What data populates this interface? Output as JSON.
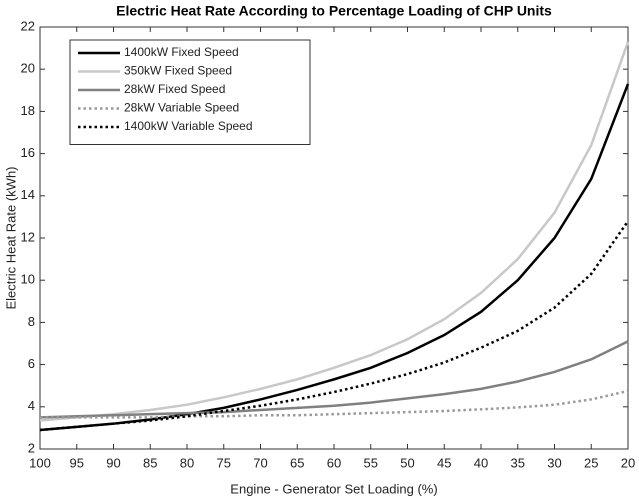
{
  "chart_data": {
    "type": "line",
    "title": "Electric Heat Rate According to Percentage Loading of CHP Units",
    "x_label": "Engine - Generator Set Loading (%)",
    "y_label": "Electric Heat Rate (kWh)",
    "x": [
      100,
      95,
      90,
      85,
      80,
      75,
      70,
      65,
      60,
      55,
      50,
      45,
      40,
      35,
      30,
      25,
      20
    ],
    "series": [
      {
        "name": "1400kW Fixed Speed",
        "color": "#000000",
        "style": "solid",
        "values": [
          2.9,
          3.05,
          3.2,
          3.4,
          3.65,
          3.95,
          4.35,
          4.8,
          5.3,
          5.85,
          6.55,
          7.4,
          8.5,
          10.0,
          12.0,
          14.8,
          19.3
        ]
      },
      {
        "name": "350kW Fixed Speed",
        "color": "#c8c8c8",
        "style": "solid",
        "values": [
          3.35,
          3.5,
          3.65,
          3.85,
          4.1,
          4.45,
          4.85,
          5.3,
          5.85,
          6.45,
          7.2,
          8.15,
          9.4,
          11.0,
          13.2,
          16.4,
          21.3
        ]
      },
      {
        "name": "28kW Fixed Speed",
        "color": "#808080",
        "style": "solid",
        "values": [
          3.5,
          3.55,
          3.6,
          3.65,
          3.7,
          3.75,
          3.85,
          3.95,
          4.05,
          4.2,
          4.4,
          4.6,
          4.85,
          5.2,
          5.65,
          6.25,
          7.1
        ]
      },
      {
        "name": "28kW Variable Speed",
        "color": "#999999",
        "style": "dotted",
        "values": [
          3.5,
          3.5,
          3.5,
          3.5,
          3.55,
          3.55,
          3.6,
          3.6,
          3.65,
          3.7,
          3.75,
          3.8,
          3.88,
          3.97,
          4.1,
          4.35,
          4.75
        ]
      },
      {
        "name": "1400kW Variable Speed",
        "color": "#000000",
        "style": "dotted",
        "values": [
          2.9,
          3.05,
          3.2,
          3.35,
          3.55,
          3.8,
          4.05,
          4.35,
          4.7,
          5.1,
          5.55,
          6.1,
          6.8,
          7.6,
          8.7,
          10.3,
          12.8
        ]
      }
    ],
    "xlim": [
      100,
      20
    ],
    "xticks": [
      100,
      95,
      90,
      85,
      80,
      75,
      70,
      65,
      60,
      55,
      50,
      45,
      40,
      35,
      30,
      25,
      20
    ],
    "ylim": [
      2,
      22
    ],
    "yticks": [
      2,
      4,
      6,
      8,
      10,
      12,
      14,
      16,
      18,
      20,
      22
    ],
    "grid": false,
    "legend": "upper left"
  }
}
